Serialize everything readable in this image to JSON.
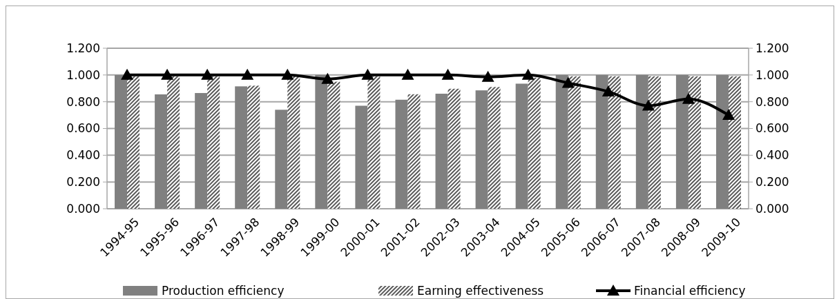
{
  "chart_data": {
    "type": "bar",
    "categories": [
      "1994-95",
      "1995-96",
      "1996-97",
      "1997-98",
      "1998-99",
      "1999-00",
      "2000-01",
      "2001-02",
      "2002-03",
      "2003-04",
      "2004-05",
      "2005-06",
      "2006-07",
      "2007-08",
      "2008-09",
      "2009-10"
    ],
    "series": [
      {
        "name": "Production efficiency",
        "color": "#808080",
        "values": [
          1.0,
          0.855,
          0.865,
          0.915,
          0.74,
          1.0,
          0.77,
          0.815,
          0.86,
          0.885,
          0.935,
          1.0,
          1.0,
          1.0,
          1.0,
          1.0
        ]
      },
      {
        "name": "Earning effectiveness",
        "color": "#595959",
        "values": [
          0.99,
          0.99,
          0.99,
          0.92,
          0.99,
          0.95,
          0.99,
          0.856,
          0.897,
          0.91,
          0.98,
          0.99,
          0.99,
          0.99,
          0.99,
          0.99
        ]
      },
      {
        "name": "Financial efficiency",
        "type": "line",
        "color": "#000000",
        "marker": "triangle",
        "values": [
          1.0,
          1.0,
          1.0,
          1.0,
          1.0,
          0.97,
          1.0,
          1.0,
          1.0,
          0.985,
          1.0,
          0.94,
          0.876,
          0.77,
          0.82,
          0.7
        ]
      }
    ],
    "ylim": [
      0,
      1.2
    ],
    "yticks": [
      {
        "value": 0,
        "label": "0.000"
      },
      {
        "value": 0.2,
        "label": "0.200"
      },
      {
        "value": 0.4,
        "label": "0.400"
      },
      {
        "value": 0.6,
        "label": "0.600"
      },
      {
        "value": 0.8,
        "label": "0.800"
      },
      {
        "value": 1.0,
        "label": "1.000"
      },
      {
        "value": 1.2,
        "label": "1.200"
      }
    ],
    "y2lim": [
      0,
      1.2
    ],
    "y2ticks": [
      {
        "value": 0,
        "label": "0.000"
      },
      {
        "value": 0.2,
        "label": "0.200"
      },
      {
        "value": 0.4,
        "label": "0.400"
      },
      {
        "value": 0.6,
        "label": "0.600"
      },
      {
        "value": 0.8,
        "label": "0.800"
      },
      {
        "value": 1.0,
        "label": "1.000"
      },
      {
        "value": 1.2,
        "label": "1.200"
      }
    ],
    "grid": "y",
    "legend": "bottom"
  }
}
